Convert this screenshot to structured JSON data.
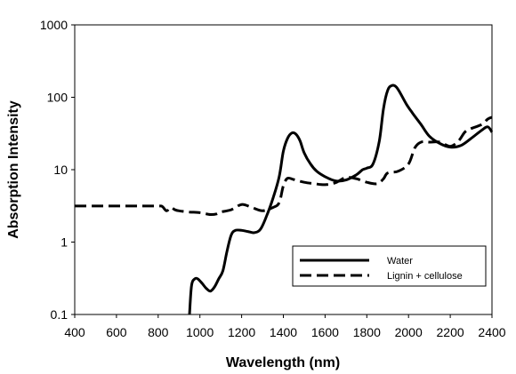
{
  "chart_data": {
    "type": "line",
    "title": "",
    "xlabel": "Wavelength (nm)",
    "ylabel": "Absorption Intensity",
    "xlim": [
      400,
      2400
    ],
    "ylim": [
      0.1,
      1000
    ],
    "yscale": "log",
    "grid": false,
    "legend_position": "bottom-right",
    "x_ticks": [
      "400",
      "600",
      "800",
      "1000",
      "1200",
      "1400",
      "1600",
      "1800",
      "2000",
      "2200",
      "2400"
    ],
    "y_ticks": [
      "0.1",
      "1",
      "10",
      "100",
      "1000"
    ],
    "series": [
      {
        "name": "Water",
        "style": "solid",
        "color": "#000000",
        "points": [
          [
            950,
            0.1
          ],
          [
            960,
            0.25
          ],
          [
            975,
            0.31
          ],
          [
            990,
            0.31
          ],
          [
            1010,
            0.27
          ],
          [
            1030,
            0.23
          ],
          [
            1050,
            0.21
          ],
          [
            1070,
            0.24
          ],
          [
            1090,
            0.31
          ],
          [
            1110,
            0.4
          ],
          [
            1130,
            0.75
          ],
          [
            1150,
            1.25
          ],
          [
            1170,
            1.45
          ],
          [
            1200,
            1.45
          ],
          [
            1230,
            1.4
          ],
          [
            1260,
            1.35
          ],
          [
            1290,
            1.5
          ],
          [
            1320,
            2.3
          ],
          [
            1350,
            4.0
          ],
          [
            1380,
            8.0
          ],
          [
            1400,
            18
          ],
          [
            1420,
            27
          ],
          [
            1440,
            32
          ],
          [
            1460,
            31
          ],
          [
            1480,
            25
          ],
          [
            1500,
            17
          ],
          [
            1530,
            12
          ],
          [
            1560,
            9.5
          ],
          [
            1600,
            8.0
          ],
          [
            1650,
            7.0
          ],
          [
            1700,
            7.2
          ],
          [
            1750,
            8.5
          ],
          [
            1780,
            10.0
          ],
          [
            1800,
            10.5
          ],
          [
            1830,
            12
          ],
          [
            1860,
            25
          ],
          [
            1880,
            70
          ],
          [
            1900,
            125
          ],
          [
            1920,
            145
          ],
          [
            1940,
            140
          ],
          [
            1960,
            115
          ],
          [
            1990,
            80
          ],
          [
            2020,
            60
          ],
          [
            2060,
            42
          ],
          [
            2100,
            29
          ],
          [
            2150,
            23
          ],
          [
            2200,
            20.5
          ],
          [
            2250,
            21.5
          ],
          [
            2300,
            27
          ],
          [
            2350,
            35
          ],
          [
            2380,
            39
          ],
          [
            2400,
            33
          ]
        ]
      },
      {
        "name": "Lignin + cellulose",
        "style": "dashed",
        "color": "#000000",
        "points": [
          [
            400,
            3.15
          ],
          [
            500,
            3.15
          ],
          [
            600,
            3.15
          ],
          [
            700,
            3.15
          ],
          [
            800,
            3.15
          ],
          [
            820,
            3.1
          ],
          [
            840,
            2.7
          ],
          [
            860,
            3.0
          ],
          [
            880,
            2.8
          ],
          [
            900,
            2.7
          ],
          [
            950,
            2.6
          ],
          [
            1000,
            2.55
          ],
          [
            1050,
            2.4
          ],
          [
            1080,
            2.45
          ],
          [
            1100,
            2.6
          ],
          [
            1150,
            2.8
          ],
          [
            1200,
            3.3
          ],
          [
            1250,
            3.0
          ],
          [
            1300,
            2.7
          ],
          [
            1350,
            3.0
          ],
          [
            1380,
            3.5
          ],
          [
            1400,
            6.0
          ],
          [
            1420,
            7.6
          ],
          [
            1450,
            7.3
          ],
          [
            1500,
            6.7
          ],
          [
            1550,
            6.4
          ],
          [
            1600,
            6.2
          ],
          [
            1650,
            6.6
          ],
          [
            1700,
            7.8
          ],
          [
            1750,
            7.5
          ],
          [
            1800,
            6.7
          ],
          [
            1850,
            6.4
          ],
          [
            1880,
            7.5
          ],
          [
            1900,
            9.0
          ],
          [
            1950,
            9.5
          ],
          [
            2000,
            12
          ],
          [
            2030,
            20
          ],
          [
            2060,
            24
          ],
          [
            2100,
            24
          ],
          [
            2150,
            24
          ],
          [
            2200,
            21
          ],
          [
            2240,
            25
          ],
          [
            2270,
            33
          ],
          [
            2300,
            37
          ],
          [
            2350,
            42
          ],
          [
            2380,
            50
          ],
          [
            2400,
            53
          ]
        ]
      }
    ]
  }
}
